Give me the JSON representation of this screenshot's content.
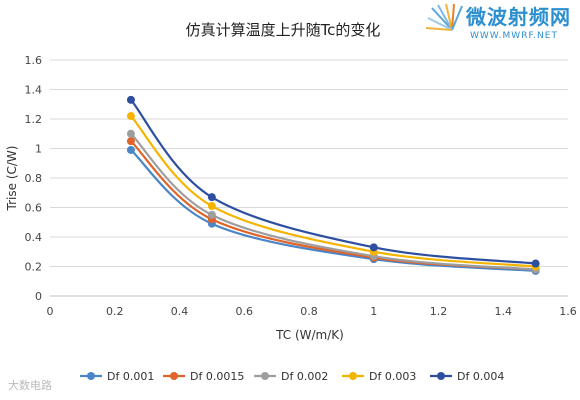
{
  "chart_data": {
    "type": "line",
    "title": "仿真计算温度上升随Tc的变化",
    "xlabel": "TC (W/m/K)",
    "ylabel": "Trise (C/W)",
    "xlim": [
      0,
      1.6
    ],
    "ylim": [
      0,
      1.6
    ],
    "xticks": [
      0,
      0.2,
      0.4,
      0.6,
      0.8,
      1,
      1.2,
      1.4,
      1.6
    ],
    "yticks": [
      0,
      0.2,
      0.4,
      0.6,
      0.8,
      1,
      1.2,
      1.4,
      1.6
    ],
    "xtick_labels": [
      "0",
      "0.2",
      "0.4",
      "0.6",
      "0.8",
      "1",
      "1.2",
      "1.4",
      "1.6"
    ],
    "ytick_labels": [
      "0",
      "0.2",
      "0.4",
      "0.6",
      "0.8",
      "1",
      "1.2",
      "1.4",
      "1.6"
    ],
    "grid": "horizontal",
    "legend_position": "bottom",
    "x": [
      0.25,
      0.5,
      1,
      1.5
    ],
    "series": [
      {
        "name": "Df 0.001",
        "color": "#4a86c8",
        "values": [
          0.99,
          0.49,
          0.25,
          0.17
        ]
      },
      {
        "name": "Df 0.0015",
        "color": "#e0632a",
        "values": [
          1.05,
          0.52,
          0.26,
          0.18
        ]
      },
      {
        "name": "Df 0.002",
        "color": "#9e9e9e",
        "values": [
          1.1,
          0.55,
          0.27,
          0.18
        ]
      },
      {
        "name": "Df 0.003",
        "color": "#f5b400",
        "values": [
          1.22,
          0.61,
          0.3,
          0.2
        ]
      },
      {
        "name": "Df 0.004",
        "color": "#2e4fa0",
        "values": [
          1.33,
          0.67,
          0.33,
          0.22
        ]
      }
    ]
  },
  "logo": {
    "cn": "微波射频网",
    "en": "WWW.MWRF.NET"
  },
  "watermark": {
    "text": "大数电路"
  }
}
